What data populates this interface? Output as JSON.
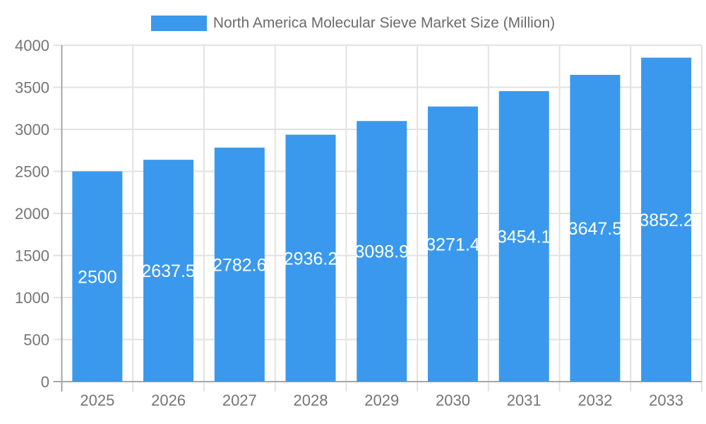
{
  "legend": {
    "label": "North America Molecular Sieve Market Size (Million)"
  },
  "colors": {
    "bar": "#3A99EC",
    "grid": "#E2E2E2",
    "axis": "#A6A6A6",
    "tick_label": "#757575",
    "legend_label": "#6B6B6B",
    "value_label": "#FFFFFF",
    "background": "#FFFFFF"
  },
  "chart_data": {
    "type": "bar",
    "title": "North America Molecular Sieve Market Size (Million)",
    "series": [
      {
        "name": "North America Molecular Sieve Market Size (Million)",
        "values": [
          2500,
          2637.5,
          2782.6,
          2936.2,
          3098.9,
          3271.4,
          3454.1,
          3647.5,
          3852.2
        ]
      }
    ],
    "categories": [
      "2025",
      "2026",
      "2027",
      "2028",
      "2029",
      "2030",
      "2031",
      "2032",
      "2033"
    ],
    "xlabel": "",
    "ylabel": "",
    "ylim": [
      0,
      4000
    ],
    "ytick_step": 500,
    "yticks": [
      0,
      500,
      1000,
      1500,
      2000,
      2500,
      3000,
      3500,
      4000
    ],
    "grid": true,
    "legend_position": "top",
    "value_label_position": "inside-center"
  }
}
